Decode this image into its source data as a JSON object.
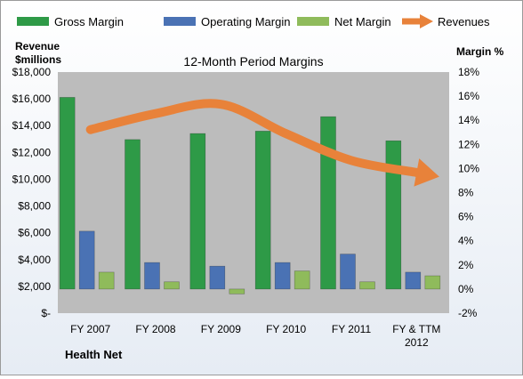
{
  "colors": {
    "gross": "#2e9a47",
    "operating": "#4a72b4",
    "net": "#8fbb5b",
    "revenue_arrow": "#e8823a",
    "plot_bg": "#bcbcbc"
  },
  "icons": {
    "gross": "green-bar-swatch",
    "operating": "blue-bar-swatch",
    "net": "light-green-bar-swatch",
    "revenue": "orange-arrow-swatch"
  },
  "chart_data": {
    "type": "bar",
    "title": "12-Month Period Margins",
    "footer_label": "Health Net",
    "categories": [
      "FY 2007",
      "FY 2008",
      "FY 2009",
      "FY 2010",
      "FY 2011",
      "FY & TTM 2012"
    ],
    "left_axis": {
      "label_line1": "Revenue",
      "label_line2": "$millions",
      "ylim": [
        0,
        18000
      ],
      "ticks": [
        "$-",
        "$2,000",
        "$4,000",
        "$6,000",
        "$8,000",
        "$10,000",
        "$12,000",
        "$14,000",
        "$16,000",
        "$18,000"
      ]
    },
    "right_axis": {
      "label": "Margin %",
      "ylim": [
        -2,
        18
      ],
      "ticks": [
        "-2%",
        "0%",
        "2%",
        "4%",
        "6%",
        "8%",
        "10%",
        "12%",
        "14%",
        "16%",
        "18%"
      ]
    },
    "series": [
      {
        "name": "Gross Margin",
        "axis": "right",
        "values": [
          15.9,
          12.4,
          12.9,
          13.1,
          14.3,
          12.3
        ]
      },
      {
        "name": "Operating Margin",
        "axis": "right",
        "values": [
          4.8,
          2.2,
          1.9,
          2.2,
          2.9,
          1.4
        ]
      },
      {
        "name": "Net Margin",
        "axis": "right",
        "values": [
          1.4,
          0.6,
          -0.4,
          1.5,
          0.6,
          1.1
        ]
      },
      {
        "name": "Revenues",
        "axis": "left",
        "type": "line-arrow",
        "values": [
          13700,
          14900,
          15600,
          13400,
          11400,
          10500
        ]
      }
    ],
    "legend_position": "top",
    "grid": false
  }
}
